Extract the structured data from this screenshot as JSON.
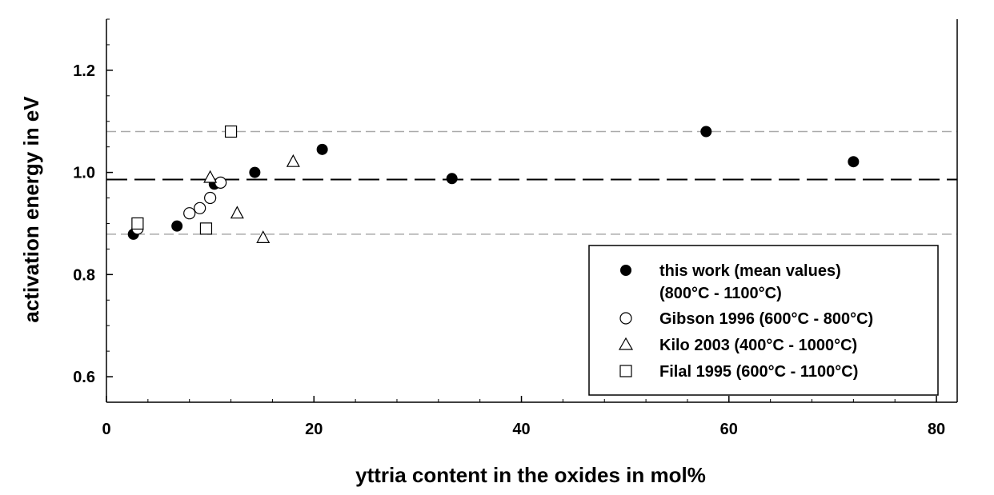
{
  "chart_data": {
    "type": "scatter",
    "xlabel": "yttria content in the oxides in mol%",
    "ylabel": "activation energy in eV",
    "xlim": [
      0,
      82
    ],
    "ylim": [
      0.55,
      1.3
    ],
    "x_ticks": [
      {
        "value": 0,
        "label": "0"
      },
      {
        "value": 20,
        "label": "20"
      },
      {
        "value": 40,
        "label": "40"
      },
      {
        "value": 60,
        "label": "60"
      },
      {
        "value": 80,
        "label": "80"
      }
    ],
    "y_ticks": [
      {
        "value": 0.6,
        "label": "0.6"
      },
      {
        "value": 0.8,
        "label": "0.8"
      },
      {
        "value": 1.0,
        "label": "1.0"
      },
      {
        "value": 1.2,
        "label": "1.2"
      }
    ],
    "grid": false,
    "legend_position": "bottom-right",
    "reference_lines": [
      {
        "y": 0.986,
        "style": "long-dash",
        "color": "#000000"
      },
      {
        "y": 1.08,
        "style": "dash",
        "color": "#aaaaaa"
      },
      {
        "y": 0.879,
        "style": "dash",
        "color": "#aaaaaa"
      }
    ],
    "series": [
      {
        "name": "this work (mean values)",
        "name_line2": "(800°C - 1100°C)",
        "marker": "filled-circle",
        "points": [
          [
            2.6,
            0.879
          ],
          [
            6.8,
            0.895
          ],
          [
            10.4,
            0.977
          ],
          [
            14.3,
            1.0
          ],
          [
            20.8,
            1.045
          ],
          [
            33.3,
            0.988
          ],
          [
            57.8,
            1.08
          ],
          [
            72.0,
            1.021
          ]
        ]
      },
      {
        "name": "Gibson 1996 (600°C - 800°C)",
        "marker": "open-circle",
        "points": [
          [
            3.0,
            0.89
          ],
          [
            8.0,
            0.92
          ],
          [
            9.0,
            0.93
          ],
          [
            10.0,
            0.95
          ],
          [
            11.0,
            0.98
          ]
        ]
      },
      {
        "name": "Kilo 2003 (400°C - 1000°C)",
        "marker": "open-triangle",
        "points": [
          [
            10.0,
            0.99
          ],
          [
            12.6,
            0.92
          ],
          [
            15.1,
            0.872
          ],
          [
            18.0,
            1.021
          ]
        ]
      },
      {
        "name": "Filal 1995 (600°C - 1100°C)",
        "marker": "open-square",
        "points": [
          [
            3.0,
            0.9
          ],
          [
            9.6,
            0.89
          ],
          [
            12.0,
            1.08
          ]
        ]
      }
    ]
  }
}
